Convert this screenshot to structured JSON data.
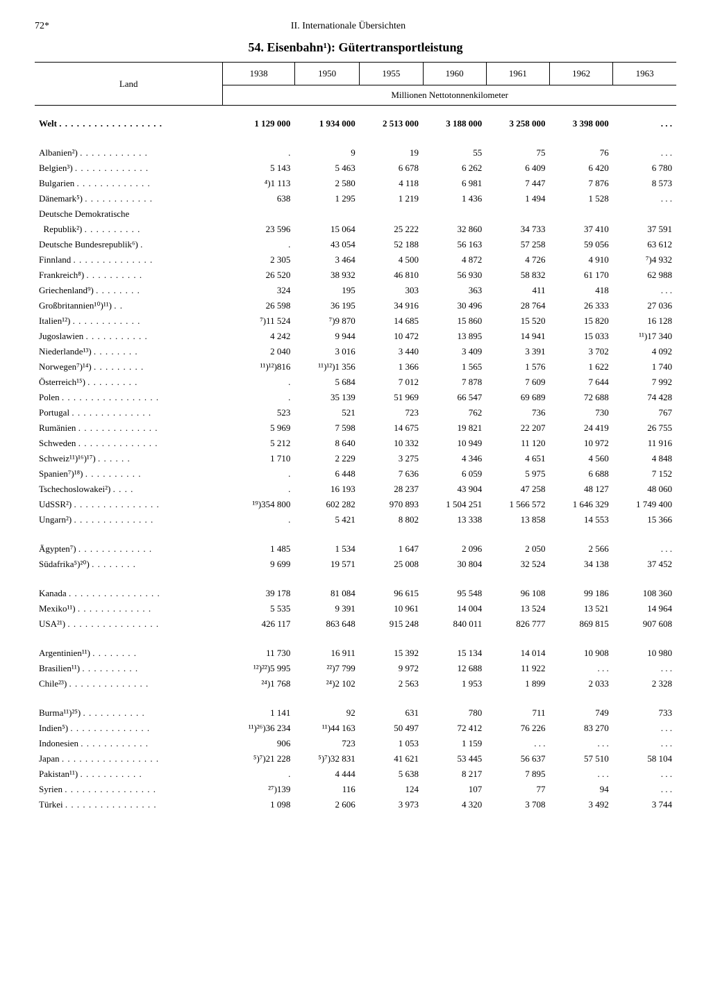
{
  "page_number": "72*",
  "section": "II. Internationale Übersichten",
  "title": "54. Eisenbahn¹): Gütertransportleistung",
  "columns": {
    "land_label": "Land",
    "years": [
      "1938",
      "1950",
      "1955",
      "1960",
      "1961",
      "1962",
      "1963"
    ],
    "unit": "Millionen Nettotonnenkilometer"
  },
  "rows": [
    {
      "type": "data",
      "bold": true,
      "first": true,
      "country": "Welt",
      "values": [
        "1 129 000",
        "1 934 000",
        "2 513 000",
        "3 188 000",
        "3 258 000",
        "3 398 000",
        ". . ."
      ]
    },
    {
      "type": "spacer"
    },
    {
      "type": "data",
      "country": "Albanien²)",
      "values": [
        ".",
        "9",
        "19",
        "55",
        "75",
        "76",
        ". . ."
      ]
    },
    {
      "type": "data",
      "country": "Belgien³)",
      "values": [
        "5 143",
        "5 463",
        "6 678",
        "6 262",
        "6 409",
        "6 420",
        "6 780"
      ]
    },
    {
      "type": "data",
      "country": "Bulgarien",
      "values": [
        "⁴)1 113",
        "2 580",
        "4 118",
        "6 981",
        "7 447",
        "7 876",
        "8 573"
      ]
    },
    {
      "type": "data",
      "country": "Dänemark⁵)",
      "values": [
        "638",
        "1 295",
        "1 219",
        "1 436",
        "1 494",
        "1 528",
        ". . ."
      ]
    },
    {
      "type": "data",
      "country_lines": [
        "Deutsche Demokratische",
        "Republik²)"
      ],
      "values": [
        "23 596",
        "15 064",
        "25 222",
        "32 860",
        "34 733",
        "37 410",
        "37 591"
      ]
    },
    {
      "type": "data",
      "country": "Deutsche Bundesrepublik⁶)",
      "values": [
        ".",
        "43 054",
        "52 188",
        "56 163",
        "57 258",
        "59 056",
        "63 612"
      ]
    },
    {
      "type": "data",
      "country": "Finnland",
      "values": [
        "2 305",
        "3 464",
        "4 500",
        "4 872",
        "4 726",
        "4 910",
        "⁷)4 932"
      ]
    },
    {
      "type": "data",
      "country": "Frankreich⁸)",
      "values": [
        "26 520",
        "38 932",
        "46 810",
        "56 930",
        "58 832",
        "61 170",
        "62 988"
      ]
    },
    {
      "type": "data",
      "country": "Griechenland⁹)",
      "values": [
        "324",
        "195",
        "303",
        "363",
        "411",
        "418",
        ". . ."
      ]
    },
    {
      "type": "data",
      "country": "Großbritannien¹⁰)¹¹)",
      "values": [
        "26 598",
        "36 195",
        "34 916",
        "30 496",
        "28 764",
        "26 333",
        "27 036"
      ]
    },
    {
      "type": "data",
      "country": "Italien¹²)",
      "values": [
        "⁷)11 524",
        "⁷)9 870",
        "14 685",
        "15 860",
        "15 520",
        "15 820",
        "16 128"
      ]
    },
    {
      "type": "data",
      "country": "Jugoslawien",
      "values": [
        "4 242",
        "9 944",
        "10 472",
        "13 895",
        "14 941",
        "15 033",
        "¹¹)17 340"
      ]
    },
    {
      "type": "data",
      "country": "Niederlande¹³)",
      "values": [
        "2 040",
        "3 016",
        "3 440",
        "3 409",
        "3 391",
        "3 702",
        "4 092"
      ]
    },
    {
      "type": "data",
      "country": "Norwegen⁷)¹⁴)",
      "values": [
        "¹¹)¹²)816",
        "¹¹)¹²)1 356",
        "1 366",
        "1 565",
        "1 576",
        "1 622",
        "1 740"
      ]
    },
    {
      "type": "data",
      "country": "Österreich¹⁵)",
      "values": [
        ".",
        "5 684",
        "7 012",
        "7 878",
        "7 609",
        "7 644",
        "7 992"
      ]
    },
    {
      "type": "data",
      "country": "Polen",
      "values": [
        ".",
        "35 139",
        "51 969",
        "66 547",
        "69 689",
        "72 688",
        "74 428"
      ]
    },
    {
      "type": "data",
      "country": "Portugal",
      "values": [
        "523",
        "521",
        "723",
        "762",
        "736",
        "730",
        "767"
      ]
    },
    {
      "type": "data",
      "country": "Rumänien",
      "values": [
        "5 969",
        "7 598",
        "14 675",
        "19 821",
        "22 207",
        "24 419",
        "26 755"
      ]
    },
    {
      "type": "data",
      "country": "Schweden",
      "values": [
        "5 212",
        "8 640",
        "10 332",
        "10 949",
        "11 120",
        "10 972",
        "11 916"
      ]
    },
    {
      "type": "data",
      "country": "Schweiz¹¹)¹⁶)¹⁷)",
      "values": [
        "1 710",
        "2 229",
        "3 275",
        "4 346",
        "4 651",
        "4 560",
        "4 848"
      ]
    },
    {
      "type": "data",
      "country": "Spanien⁷)¹⁸)",
      "values": [
        ".",
        "6 448",
        "7 636",
        "6 059",
        "5 975",
        "6 688",
        "7 152"
      ]
    },
    {
      "type": "data",
      "country": "Tschechoslowakei²)",
      "values": [
        ".",
        "16 193",
        "28 237",
        "43 904",
        "47 258",
        "48 127",
        "48 060"
      ]
    },
    {
      "type": "data",
      "country": "UdSSR²)",
      "values": [
        "¹⁹)354 800",
        "602 282",
        "970 893",
        "1 504 251",
        "1 566 572",
        "1 646 329",
        "1 749 400"
      ]
    },
    {
      "type": "data",
      "country": "Ungarn²)",
      "values": [
        ".",
        "5 421",
        "8 802",
        "13 338",
        "13 858",
        "14 553",
        "15 366"
      ]
    },
    {
      "type": "spacer"
    },
    {
      "type": "data",
      "country": "Ägypten⁷)",
      "values": [
        "1 485",
        "1 534",
        "1 647",
        "2 096",
        "2 050",
        "2 566",
        ". . ."
      ]
    },
    {
      "type": "data",
      "country": "Südafrika⁵)²⁰)",
      "values": [
        "9 699",
        "19 571",
        "25 008",
        "30 804",
        "32 524",
        "34 138",
        "37 452"
      ]
    },
    {
      "type": "spacer"
    },
    {
      "type": "data",
      "country": "Kanada",
      "values": [
        "39 178",
        "81 084",
        "96 615",
        "95 548",
        "96 108",
        "99 186",
        "108 360"
      ]
    },
    {
      "type": "data",
      "country": "Mexiko¹¹)",
      "values": [
        "5 535",
        "9 391",
        "10 961",
        "14 004",
        "13 524",
        "13 521",
        "14 964"
      ]
    },
    {
      "type": "data",
      "country": "USA²¹)",
      "values": [
        "426 117",
        "863 648",
        "915 248",
        "840 011",
        "826 777",
        "869 815",
        "907 608"
      ]
    },
    {
      "type": "spacer"
    },
    {
      "type": "data",
      "country": "Argentinien¹¹)",
      "values": [
        "11 730",
        "16 911",
        "15 392",
        "15 134",
        "14 014",
        "10 908",
        "10 980"
      ]
    },
    {
      "type": "data",
      "country": "Brasilien¹¹)",
      "values": [
        "¹²)²²)5 995",
        "²²)7 799",
        "9 972",
        "12 688",
        "11 922",
        ". . .",
        ". . ."
      ]
    },
    {
      "type": "data",
      "country": "Chile²³)",
      "values": [
        "²⁴)1 768",
        "²⁴)2 102",
        "2 563",
        "1 953",
        "1 899",
        "2 033",
        "2 328"
      ]
    },
    {
      "type": "spacer"
    },
    {
      "type": "data",
      "country": "Burma¹¹)²⁵)",
      "values": [
        "1 141",
        "92",
        "631",
        "780",
        "711",
        "749",
        "733"
      ]
    },
    {
      "type": "data",
      "country": "Indien⁵)",
      "values": [
        "¹¹)²⁶)36 234",
        "¹¹)44 163",
        "50 497",
        "72 412",
        "76 226",
        "83 270",
        ". . ."
      ]
    },
    {
      "type": "data",
      "country": "Indonesien",
      "values": [
        "906",
        "723",
        "1 053",
        "1 159",
        ". . .",
        ". . .",
        ". . ."
      ]
    },
    {
      "type": "data",
      "country": "Japan",
      "values": [
        "⁵)⁷)21 228",
        "⁵)⁷)32 831",
        "41 621",
        "53 445",
        "56 637",
        "57 510",
        "58 104"
      ]
    },
    {
      "type": "data",
      "country": "Pakistan¹¹)",
      "values": [
        ".",
        "4 444",
        "5 638",
        "8 217",
        "7 895",
        ". . .",
        ". . ."
      ]
    },
    {
      "type": "data",
      "country": "Syrien",
      "values": [
        "²⁷)139",
        "116",
        "124",
        "107",
        "77",
        "94",
        ". . ."
      ]
    },
    {
      "type": "data",
      "country": "Türkei",
      "values": [
        "1 098",
        "2 606",
        "3 973",
        "4 320",
        "3 708",
        "3 492",
        "3 744"
      ]
    }
  ],
  "style": {
    "dot_leader_width_ch": 22
  }
}
